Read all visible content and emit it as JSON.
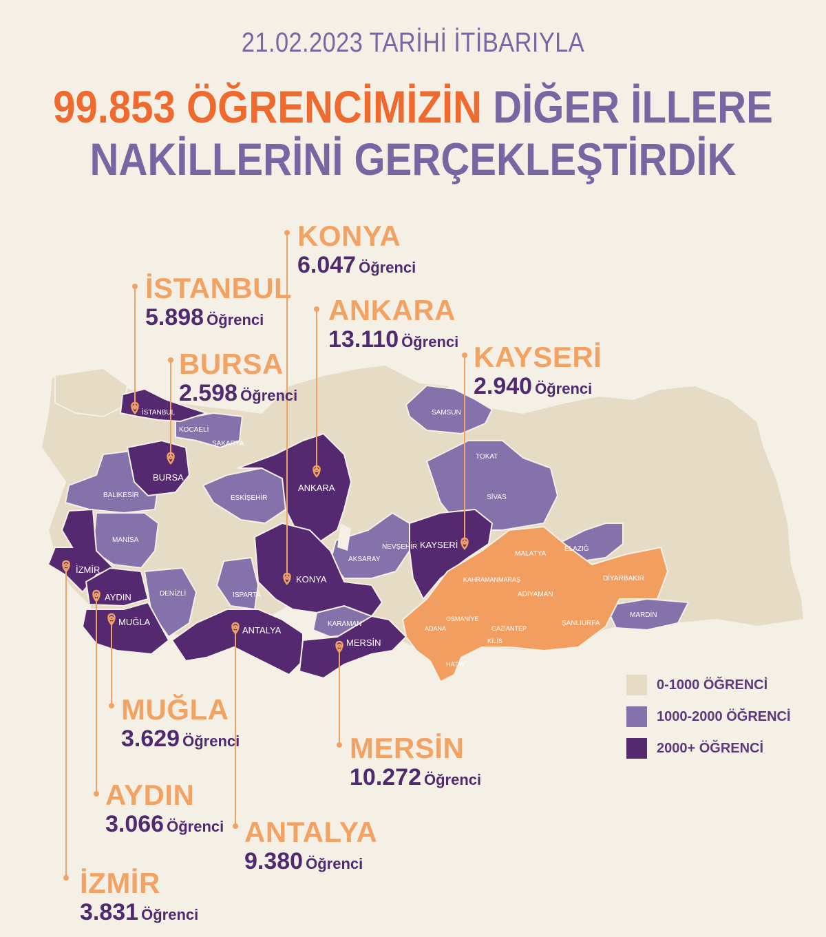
{
  "header": {
    "date_line": "21.02.2023 TARİHİ İTİBARIYLA",
    "total": "99.853",
    "students_word": "ÖĞRENCİMİZİN",
    "line1_rest": "DİĞER İLLERE",
    "line2": "NAKİLLERİNİ GERÇEKLEŞTİRDİK"
  },
  "colors": {
    "low": "#e6dcc6",
    "mid": "#8572ab",
    "high": "#55296f",
    "earthquake": "#f29e60",
    "accent_orange": "#ef6a2e",
    "title_purple": "#7a65a3"
  },
  "legend": [
    {
      "label": "0-1000 ÖĞRENCİ",
      "color": "#e6dcc6"
    },
    {
      "label": "1000-2000 ÖĞRENCİ",
      "color": "#8572ab"
    },
    {
      "label": "2000+ ÖĞRENCİ",
      "color": "#55296f"
    }
  ],
  "unit_label": "Öğrenci",
  "callouts": [
    {
      "city": "KONYA",
      "count": "6.047"
    },
    {
      "city": "İSTANBUL",
      "count": "5.898"
    },
    {
      "city": "ANKARA",
      "count": "13.110"
    },
    {
      "city": "BURSA",
      "count": "2.598"
    },
    {
      "city": "KAYSERİ",
      "count": "2.940"
    },
    {
      "city": "MUĞLA",
      "count": "3.629"
    },
    {
      "city": "MERSİN",
      "count": "10.272"
    },
    {
      "city": "AYDIN",
      "count": "3.066"
    },
    {
      "city": "ANTALYA",
      "count": "9.380"
    },
    {
      "city": "İZMİR",
      "count": "3.831"
    }
  ],
  "province_labels": [
    "İSTANBUL",
    "KOCAELİ",
    "SAKARYA",
    "BURSA",
    "BALIKESİR",
    "ESKİŞEHİR",
    "ANKARA",
    "MANİSA",
    "İZMİR",
    "AYDIN",
    "MUĞLA",
    "DENİZLİ",
    "ISPARTA",
    "ANTALYA",
    "KONYA",
    "AKSARAY",
    "NEVŞEHİR",
    "KAYSERİ",
    "KARAMAN",
    "MERSİN",
    "SAMSUN",
    "TOKAT",
    "SİVAS",
    "MALATYA",
    "ELAZIĞ",
    "KAHRAMANMARAŞ",
    "ADIYAMAN",
    "DİYARBAKIR",
    "OSMANİYE",
    "ADANA",
    "GAZİANTEP",
    "ŞANLIURFA",
    "MARDİN",
    "KİLİS",
    "HATAY"
  ]
}
